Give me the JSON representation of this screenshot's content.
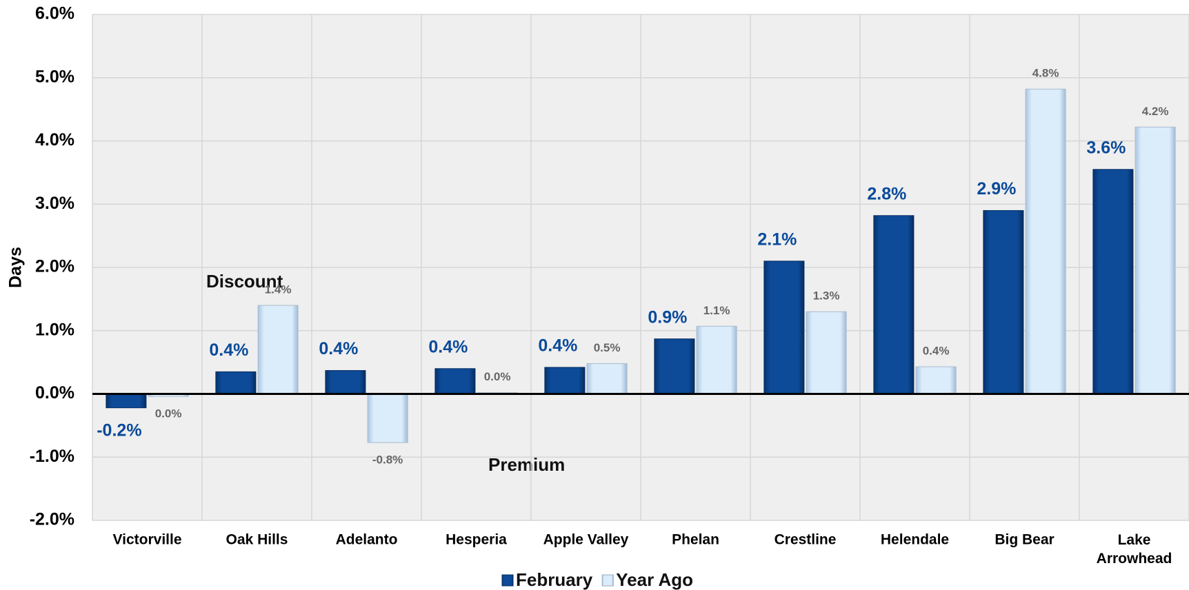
{
  "chart_data": {
    "type": "bar",
    "y_axis_label": "Days",
    "categories": [
      "Victorville",
      "Oak Hills",
      "Adelanto",
      "Hesperia",
      "Apple Valley",
      "Phelan",
      "Crestline",
      "Helendale",
      "Big Bear",
      "Lake Arrowhead"
    ],
    "series": [
      {
        "name": "February",
        "color": "#0b4289",
        "values": [
          -0.22,
          0.35,
          0.37,
          0.4,
          0.42,
          0.87,
          2.1,
          2.82,
          2.9,
          3.55
        ],
        "value_labels": [
          "-0.2%",
          "0.4%",
          "0.4%",
          "0.4%",
          "0.4%",
          "0.9%",
          "2.1%",
          "2.8%",
          "2.9%",
          "3.6%"
        ]
      },
      {
        "name": "Year Ago",
        "color": "#cfe4f7",
        "values": [
          -0.04,
          1.4,
          -0.77,
          0.02,
          0.48,
          1.07,
          1.3,
          0.43,
          4.82,
          4.22
        ],
        "value_labels": [
          "0.0%",
          "1.4%",
          "-0.8%",
          "0.0%",
          "0.5%",
          "1.1%",
          "1.3%",
          "0.4%",
          "4.8%",
          "4.2%"
        ]
      }
    ],
    "ylim": [
      -2,
      6
    ],
    "yticks": [
      {
        "value": -2,
        "label": "-2.0%"
      },
      {
        "value": -1,
        "label": "-1.0%"
      },
      {
        "value": 0,
        "label": "0.0%"
      },
      {
        "value": 1,
        "label": "1.0%"
      },
      {
        "value": 2,
        "label": "2.0%"
      },
      {
        "value": 3,
        "label": "3.0%"
      },
      {
        "value": 4,
        "label": "4.0%"
      },
      {
        "value": 5,
        "label": "5.0%"
      },
      {
        "value": 6,
        "label": "6.0%"
      }
    ],
    "annotations": [
      "Discount",
      "Premium"
    ],
    "grid": true,
    "legend": "bottom"
  }
}
